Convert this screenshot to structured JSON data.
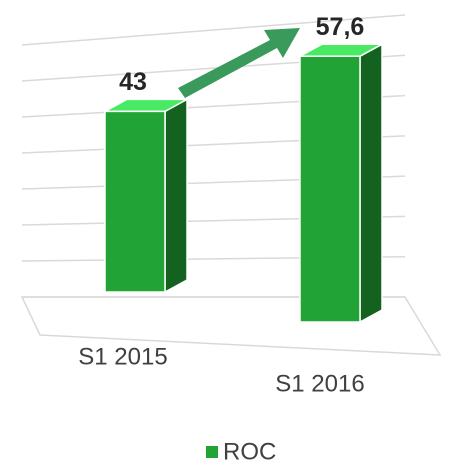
{
  "chart_data": {
    "type": "bar3d",
    "categories": [
      "S1 2015",
      "S1 2016"
    ],
    "series": [
      {
        "name": "ROC",
        "color": "#21a336",
        "values": [
          43,
          57.6
        ],
        "value_labels": [
          "43",
          "57,6"
        ]
      }
    ],
    "ylim": [
      0,
      70
    ],
    "yticks": [
      0,
      10,
      20,
      30,
      40,
      50,
      60,
      70
    ],
    "grid": true,
    "legend": "bottom"
  }
}
